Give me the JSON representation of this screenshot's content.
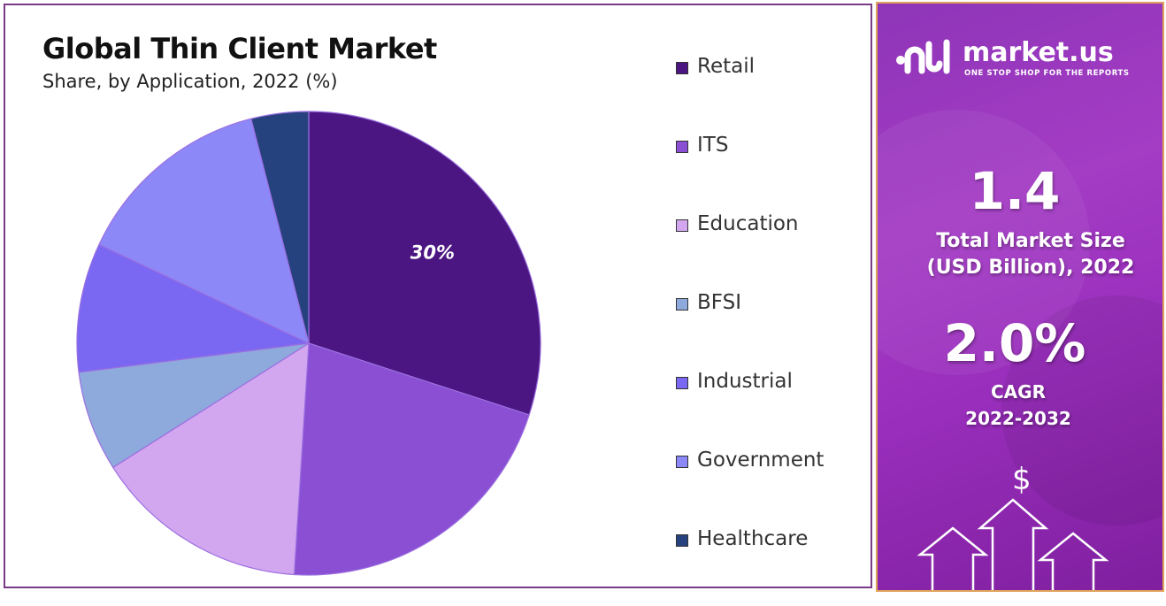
{
  "chart_data": {
    "type": "pie",
    "title": "Global Thin Client Market",
    "subtitle": "Share, by Application, 2022 (%)",
    "categories": [
      "Retail",
      "ITS",
      "Education",
      "BFSI",
      "Industrial",
      "Government",
      "Healthcare"
    ],
    "values": [
      30,
      21,
      15,
      7,
      9,
      14,
      4
    ],
    "colors": [
      "#4b1682",
      "#8a4fd3",
      "#d3a6f0",
      "#8ea9dc",
      "#7a68f2",
      "#8c88f8",
      "#26427e"
    ],
    "data_labels": [
      {
        "category": "Retail",
        "text": "30%"
      }
    ],
    "legend_position": "right"
  },
  "sidebar": {
    "brand": "market.us",
    "tagline": "ONE STOP SHOP FOR THE REPORTS",
    "market_size_value": "1.4",
    "market_size_label_line1": "Total Market Size",
    "market_size_label_line2": "(USD Billion), 2022",
    "cagr_value": "2.0%",
    "cagr_label_line1": "CAGR",
    "cagr_label_line2": "2022-2032",
    "dollar_symbol": "$"
  }
}
